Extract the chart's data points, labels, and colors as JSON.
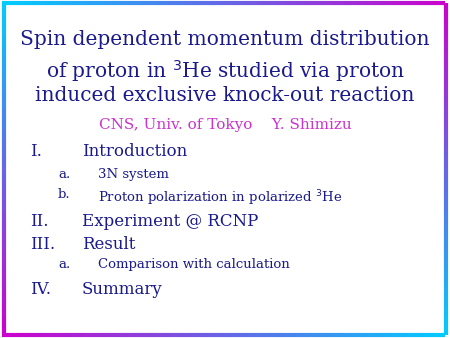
{
  "background_color": "#ffffff",
  "text_color": "#1a1a8c",
  "subtitle_color": "#cc33cc",
  "title_line1": "Spin dependent momentum distribution",
  "title_line2": "of proton in $^3$He studied via proton",
  "title_line3": "induced exclusive knock-out reaction",
  "subtitle": "CNS, Univ. of Tokyo    Y. Shimizu",
  "items": [
    {
      "level": 1,
      "label": "I.",
      "text": "Introduction"
    },
    {
      "level": 2,
      "label": "a.",
      "text": "3N system"
    },
    {
      "level": 2,
      "label": "b.",
      "text": "Proton polarization in polarized $^3$He"
    },
    {
      "level": 1,
      "label": "II.",
      "text": "Experiment @ RCNP"
    },
    {
      "level": 1,
      "label": "III.",
      "text": "Result"
    },
    {
      "level": 2,
      "label": "a.",
      "text": "Comparison with calculation"
    },
    {
      "level": 1,
      "label": "IV.",
      "text": "Summary"
    }
  ],
  "title_fontsize": 14.5,
  "subtitle_fontsize": 11,
  "item_fontsize_1": 12,
  "item_fontsize_2": 9.5,
  "border_color_start": "#00ccff",
  "border_color_end": "#cc00cc"
}
